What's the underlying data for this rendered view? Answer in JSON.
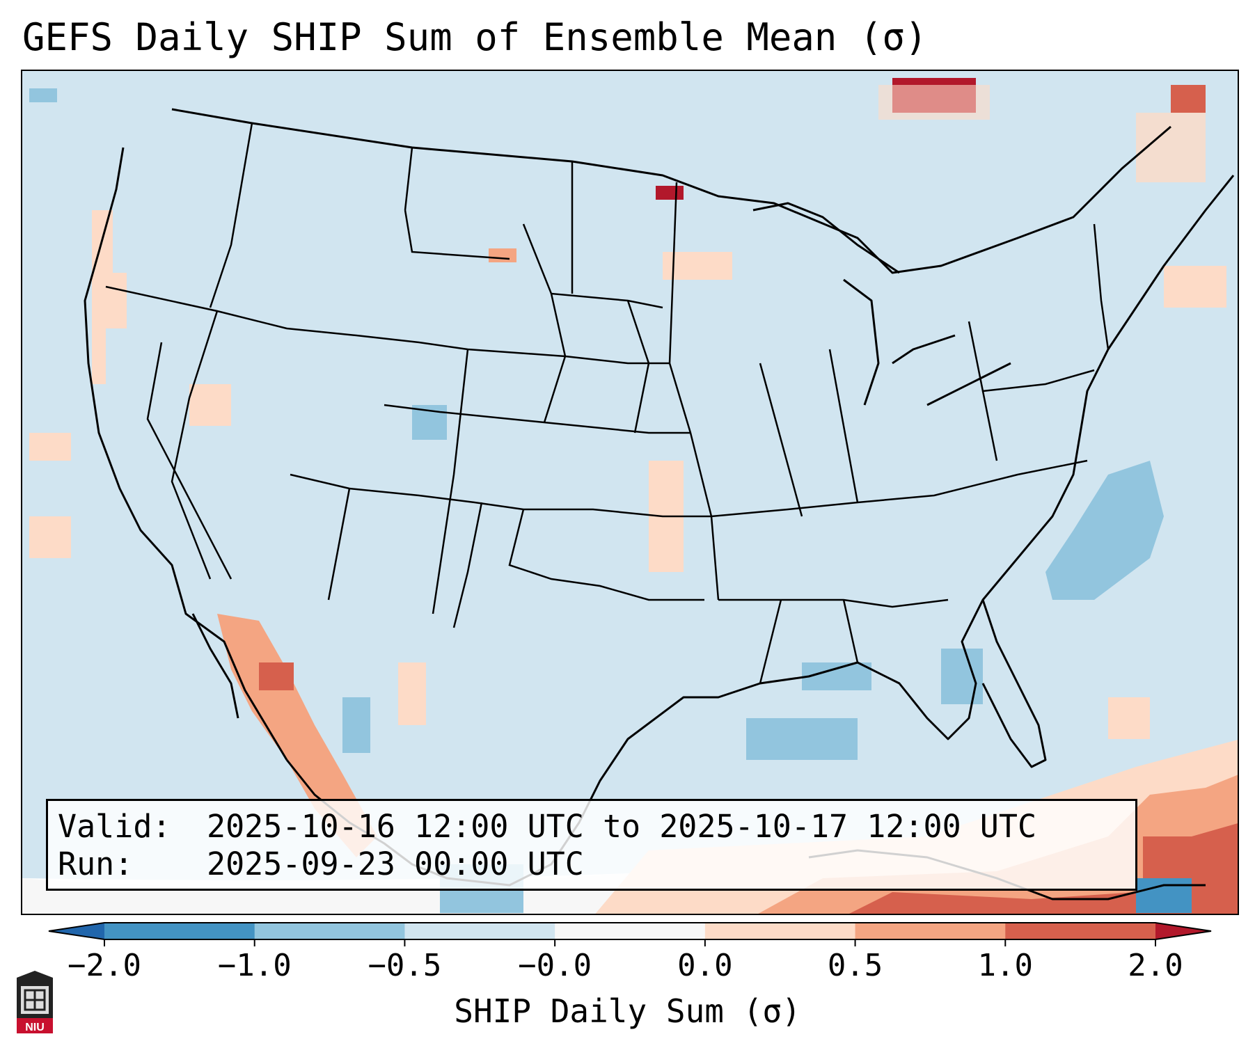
{
  "title": "GEFS Daily SHIP Sum of Ensemble Mean (σ)",
  "info": {
    "valid_label": "Valid:",
    "valid_value": "2025-10-16 12:00 UTC to 2025-10-17 12:00 UTC",
    "run_label": "Run:",
    "run_value": "2025-09-23 00:00 UTC"
  },
  "colorbar": {
    "label": "SHIP Daily Sum (σ)",
    "ticks": [
      "−2.0",
      "−1.0",
      "−0.5",
      "−0.0",
      "0.0",
      "0.5",
      "1.0",
      "2.0"
    ],
    "bins": [
      {
        "range": [
          -2.0,
          -1.0
        ],
        "color": "#4393c3"
      },
      {
        "range": [
          -1.0,
          -0.5
        ],
        "color": "#92c5de"
      },
      {
        "range": [
          -0.5,
          -0.0
        ],
        "color": "#d1e5f0"
      },
      {
        "range": [
          0.0,
          0.0
        ],
        "color": "#f7f7f7"
      },
      {
        "range": [
          0.0,
          0.5
        ],
        "color": "#fddbc7"
      },
      {
        "range": [
          0.5,
          1.0
        ],
        "color": "#f4a582"
      },
      {
        "range": [
          1.0,
          2.0
        ],
        "color": "#d6604d"
      }
    ],
    "under_color": "#2166ac",
    "over_color": "#b2182b"
  },
  "map": {
    "region": "Contiguous United States",
    "background_value_color": "#d1e5f0",
    "outside_projection_color": "#ffffff"
  },
  "logo": {
    "text": "NIU",
    "icon": "niu-logo-icon"
  }
}
